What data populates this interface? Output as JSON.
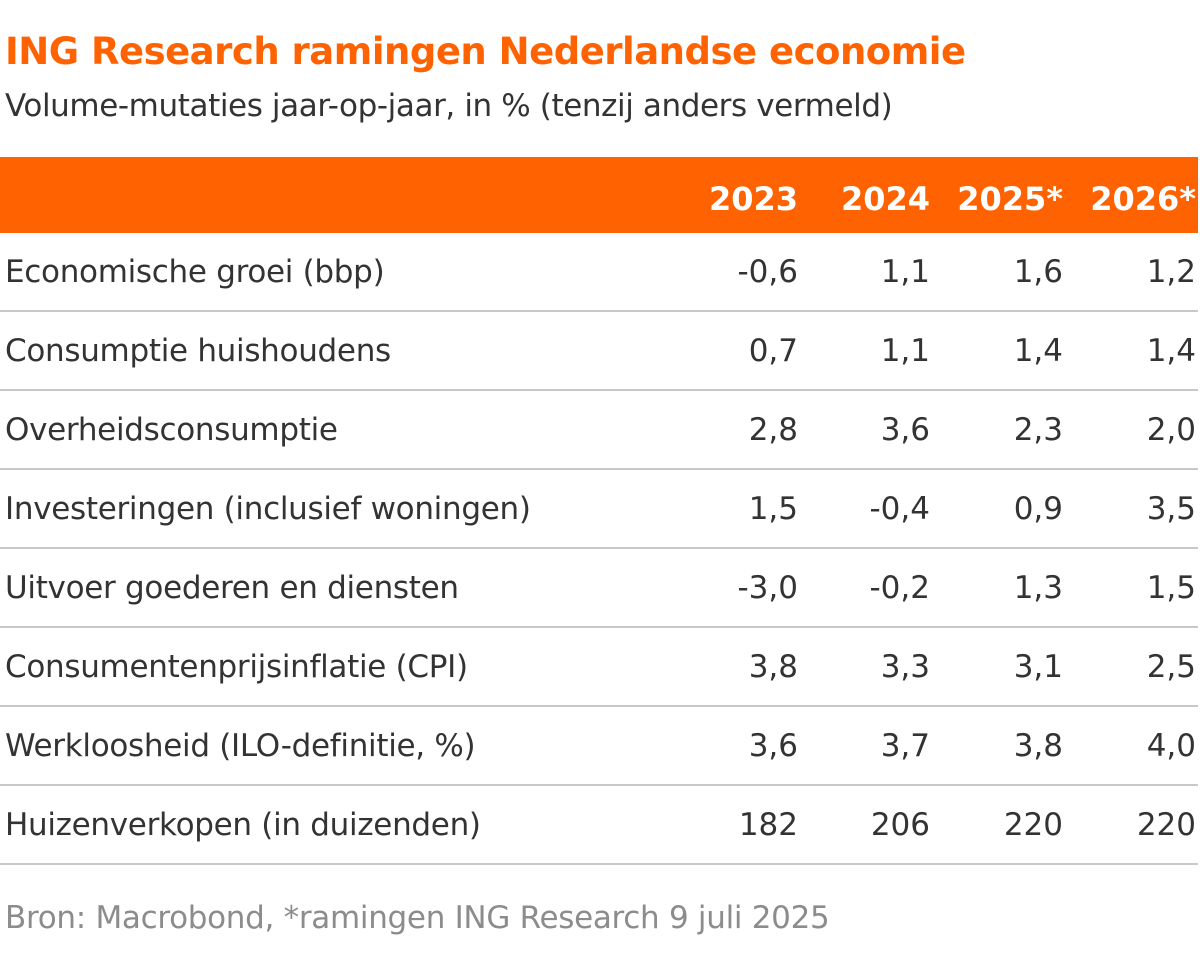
{
  "title": "ING Research ramingen Nederlandse economie",
  "subtitle": "Volume-mutaties jaar-op-jaar, in % (tenzij anders vermeld)",
  "source": "Bron: Macrobond, *ramingen ING Research 9 juli 2025",
  "colors": {
    "brand_orange": "#ff6200",
    "header_text": "#ffffff",
    "body_text": "#333333",
    "source_text": "#8c8c8c",
    "row_divider": "#c8c8c8"
  },
  "chart_data": {
    "type": "table",
    "columns": [
      "2023",
      "2024",
      "2025*",
      "2026*"
    ],
    "rows": [
      {
        "label": "Economische groei (bbp)",
        "values": [
          "-0,6",
          "1,1",
          "1,6",
          "1,2"
        ]
      },
      {
        "label": "Consumptie huishoudens",
        "values": [
          "0,7",
          "1,1",
          "1,4",
          "1,4"
        ]
      },
      {
        "label": "Overheidsconsumptie",
        "values": [
          "2,8",
          "3,6",
          "2,3",
          "2,0"
        ]
      },
      {
        "label": "Investeringen (inclusief woningen)",
        "values": [
          "1,5",
          "-0,4",
          "0,9",
          "3,5"
        ]
      },
      {
        "label": "Uitvoer goederen en diensten",
        "values": [
          "-3,0",
          "-0,2",
          "1,3",
          "1,5"
        ]
      },
      {
        "label": "Consumentenprijsinflatie (CPI)",
        "values": [
          "3,8",
          "3,3",
          "3,1",
          "2,5"
        ]
      },
      {
        "label": "Werkloosheid (ILO-definitie, %)",
        "values": [
          "3,6",
          "3,7",
          "3,8",
          "4,0"
        ]
      },
      {
        "label": "Huizenverkopen (in duizenden)",
        "values": [
          "182",
          "206",
          "220",
          "220"
        ]
      }
    ]
  }
}
